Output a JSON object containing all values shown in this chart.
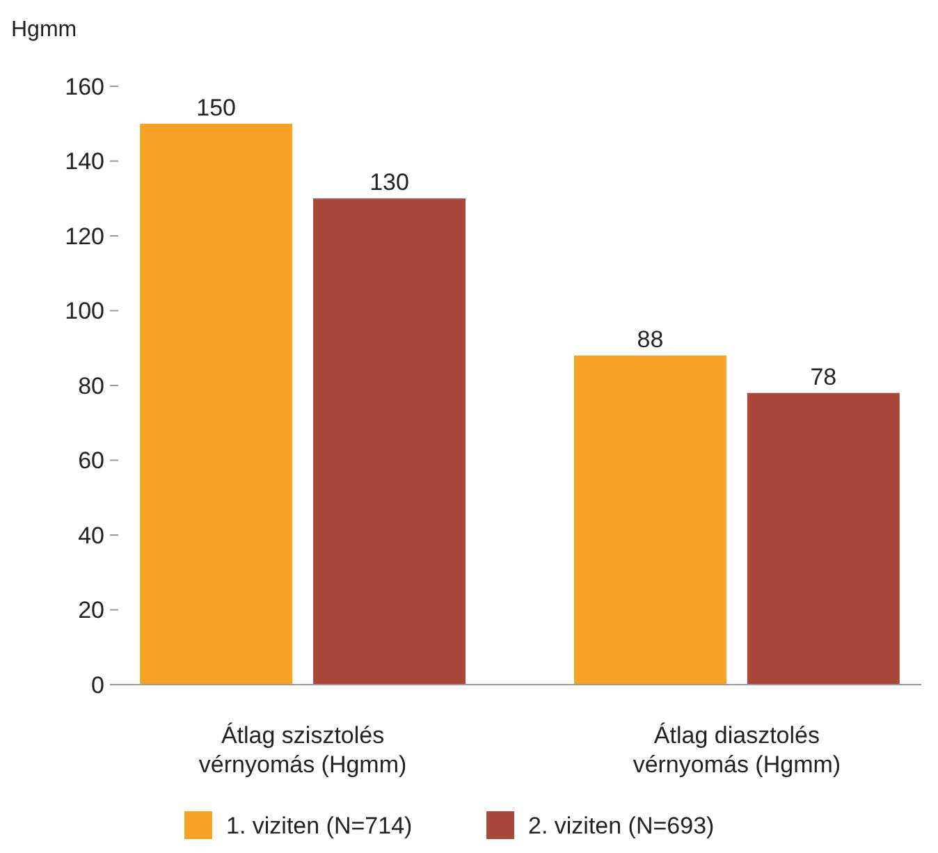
{
  "chart_data": {
    "type": "bar",
    "ylabel": "Hgmm",
    "categories": [
      "Átlag szisztolés vérnyomás (Hgmm)",
      "Átlag diasztolés vérnyomás (Hgmm)"
    ],
    "series": [
      {
        "name": "1. viziten (N=714)",
        "color": "#f7a325",
        "values": [
          150,
          88
        ]
      },
      {
        "name": "2. viziten (N=693)",
        "color": "#a8473a",
        "values": [
          130,
          78
        ]
      }
    ],
    "ylim": [
      0,
      160
    ],
    "yticks": [
      0,
      20,
      40,
      60,
      80,
      100,
      120,
      140,
      160
    ],
    "data_labels": true,
    "legend": "bottom",
    "grid": false
  }
}
